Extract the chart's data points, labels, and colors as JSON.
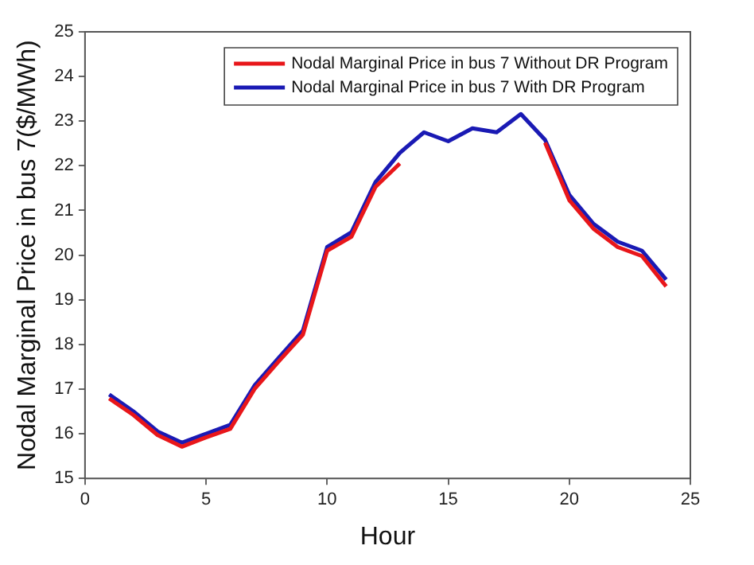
{
  "chart_data": {
    "type": "line",
    "xlabel": "Hour",
    "ylabel": "Nodal Marginal Price in bus 7($/MWh)",
    "x": [
      1,
      2,
      3,
      4,
      5,
      6,
      7,
      8,
      9,
      10,
      11,
      12,
      13,
      14,
      15,
      16,
      17,
      18,
      19,
      20,
      21,
      22,
      23,
      24
    ],
    "series": [
      {
        "name": "Nodal Marginal Price in bus 7 Without DR Program",
        "color": "#e8161a",
        "values": [
          16.79,
          16.42,
          15.97,
          15.71,
          15.92,
          16.11,
          17.0,
          17.62,
          18.22,
          20.1,
          20.41,
          21.53,
          22.05,
          null,
          null,
          null,
          null,
          null,
          22.52,
          21.23,
          20.59,
          20.18,
          19.98,
          19.3
        ]
      },
      {
        "name": "Nodal Marginal Price in bus 7 With DR Program",
        "color": "#1a1ab4",
        "values": [
          16.88,
          16.5,
          16.05,
          15.8,
          16.0,
          16.2,
          17.08,
          17.7,
          18.31,
          20.18,
          20.51,
          21.64,
          22.29,
          22.75,
          22.55,
          22.84,
          22.75,
          23.16,
          22.58,
          21.35,
          20.7,
          20.3,
          20.1,
          19.45
        ]
      }
    ],
    "xlim": [
      0,
      25
    ],
    "xticks": [
      0,
      5,
      10,
      15,
      20,
      25
    ],
    "ylim": [
      15,
      25
    ],
    "yticks": [
      15,
      16,
      17,
      18,
      19,
      20,
      21,
      22,
      23,
      24,
      25
    ],
    "legend": "top right",
    "marker": "none",
    "line_style": "solid"
  }
}
